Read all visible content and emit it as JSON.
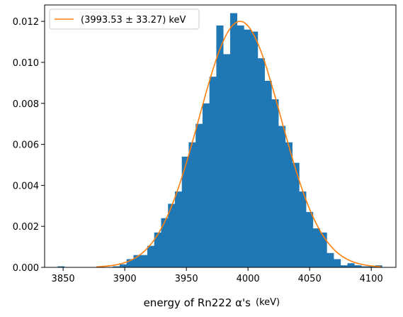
{
  "chart_data": {
    "type": "bar",
    "subtype": "histogram-with-gaussian-fit",
    "title": "",
    "xlabel": "energy of Rn222 α's",
    "xlabel_unit": "(keV)",
    "ylabel": "",
    "xlim": [
      3835,
      4120
    ],
    "ylim": [
      0,
      0.0128
    ],
    "x_ticks": [
      3850,
      3900,
      3950,
      4000,
      4050,
      4100
    ],
    "x_tick_labels": [
      "3850",
      "3900",
      "3950",
      "4000",
      "4050",
      "4100"
    ],
    "y_ticks": [
      0,
      0.002,
      0.004,
      0.006,
      0.008,
      0.01,
      0.012
    ],
    "y_tick_labels": [
      "0.000",
      "0.002",
      "0.004",
      "0.006",
      "0.008",
      "0.010",
      "0.012"
    ],
    "grid": false,
    "legend_position": "top-left",
    "histogram": {
      "color": "#1f77b4",
      "bin_edges": [
        3845.5,
        3851.1,
        3856.7,
        3862.3,
        3867.9,
        3873.5,
        3879.1,
        3884.7,
        3890.3,
        3895.9,
        3901.5,
        3907.1,
        3912.7,
        3918.3,
        3923.9,
        3929.5,
        3935.1,
        3940.7,
        3946.3,
        3951.9,
        3957.5,
        3963.1,
        3968.7,
        3974.3,
        3979.9,
        3985.5,
        3991.1,
        3996.7,
        4002.3,
        4007.9,
        4013.5,
        4019.1,
        4024.7,
        4030.3,
        4035.9,
        4041.5,
        4047.1,
        4052.7,
        4058.3,
        4063.9,
        4069.5,
        4075.1,
        4080.7,
        4086.3,
        4091.9,
        4097.5,
        4103.1,
        4108.7,
        4114.3
      ],
      "counts": [
        5e-05,
        0,
        0,
        0,
        0,
        0,
        0,
        0,
        5e-05,
        0.00015,
        0.0004,
        0.0006,
        0.0006,
        0.00105,
        0.0017,
        0.0024,
        0.0031,
        0.0037,
        0.0054,
        0.0061,
        0.007,
        0.008,
        0.0093,
        0.0118,
        0.0104,
        0.0124,
        0.0118,
        0.0116,
        0.0115,
        0.0102,
        0.0091,
        0.0082,
        0.0069,
        0.0061,
        0.0051,
        0.0037,
        0.0027,
        0.0019,
        0.0017,
        0.0007,
        0.0004,
        0.0001,
        0.0002,
        0.0001,
        5e-05,
        5e-05,
        0.0001,
        0
      ]
    },
    "fit": {
      "type": "gaussian",
      "color": "#ff7f0e",
      "mean": 3993.53,
      "sigma": 33.27,
      "peak": 0.012,
      "x_range": [
        3877,
        4108
      ],
      "label": "(3993.53 ± 33.27) keV"
    }
  }
}
